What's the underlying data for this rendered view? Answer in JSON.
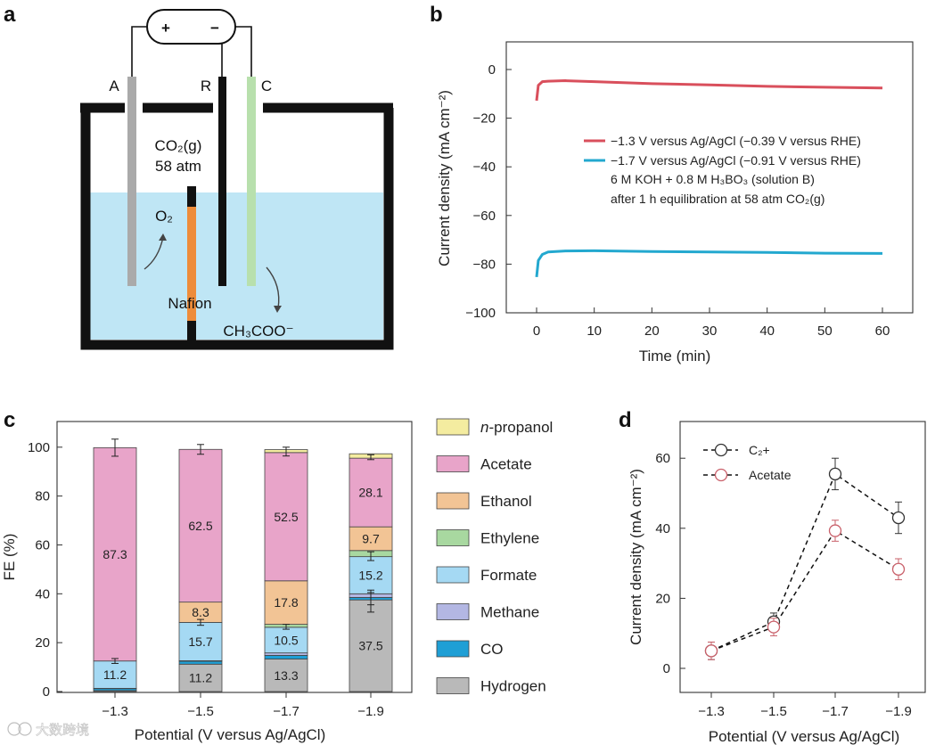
{
  "panel_labels": {
    "a": "a",
    "b": "b",
    "c": "c",
    "d": "d"
  },
  "diagram": {
    "plus": "+",
    "minus": "−",
    "electrode_a": "A",
    "electrode_r": "R",
    "electrode_c": "C",
    "gas_line1": "CO₂(g)",
    "gas_line2": "58 atm",
    "o2": "O₂",
    "membrane": "Nafion",
    "product": "CH₃COO⁻"
  },
  "watermark": "大数跨境",
  "chart_data": [
    {
      "panel": "b",
      "type": "line",
      "xlabel": "Time (min)",
      "ylabel": "Current density (mA cm⁻²)",
      "xlim": [
        0,
        60
      ],
      "ylim": [
        -100,
        0
      ],
      "xticks": [
        "0",
        "10",
        "20",
        "30",
        "40",
        "50",
        "60"
      ],
      "yticks": [
        "0",
        "−20",
        "−40",
        "−60",
        "−80",
        "−100"
      ],
      "grid": false,
      "legend_position": "right-middle",
      "colors": {
        "s1": "#d94f5c",
        "s2": "#23a8cf"
      },
      "series": [
        {
          "name": "−1.3 V versus Ag/AgCl (−0.39 V versus RHE)",
          "x": [
            0,
            0.3,
            1,
            2,
            5,
            10,
            20,
            30,
            40,
            50,
            60
          ],
          "y": [
            -12.8,
            -6.5,
            -5.0,
            -4.8,
            -4.6,
            -5.0,
            -5.8,
            -6.3,
            -6.9,
            -7.3,
            -7.6
          ]
        },
        {
          "name": "−1.7 V versus Ag/AgCl (−0.91 V versus RHE)",
          "x": [
            0,
            0.3,
            1,
            2,
            5,
            10,
            20,
            30,
            40,
            50,
            60
          ],
          "y": [
            -85.3,
            -78.5,
            -76.0,
            -75.0,
            -74.6,
            -74.5,
            -74.8,
            -75.0,
            -75.2,
            -75.5,
            -75.6
          ]
        }
      ],
      "annotation_lines": [
        "6 M KOH + 0.8 M H₃BO₃ (solution B)",
        "after 1 h equilibration at 58 atm CO₂(g)"
      ]
    },
    {
      "panel": "c",
      "type": "bar",
      "stacked": true,
      "xlabel": "Potential (V versus Ag/AgCl)",
      "ylabel": "FE (%)",
      "ylim": [
        0,
        110
      ],
      "yticks": [
        "0",
        "20",
        "40",
        "60",
        "80",
        "100"
      ],
      "categories": [
        "−1.3",
        "−1.5",
        "−1.7",
        "−1.9"
      ],
      "legend_position": "right",
      "series": [
        {
          "name": "Hydrogen",
          "color": "#b9b9b9",
          "values": [
            0.4,
            11.2,
            13.3,
            37.5
          ],
          "labels": [
            "",
            "11.2",
            "13.3",
            "37.5"
          ]
        },
        {
          "name": "CO",
          "color": "#1f9fd5",
          "values": [
            0.8,
            1.2,
            1.5,
            1.0
          ],
          "labels": [
            "",
            "",
            "",
            ""
          ]
        },
        {
          "name": "Methane",
          "color": "#b3b7e3",
          "values": [
            0.1,
            0.2,
            1.0,
            1.5
          ],
          "labels": [
            "",
            "",
            "",
            ""
          ]
        },
        {
          "name": "Formate",
          "color": "#a5d9f3",
          "values": [
            11.2,
            15.7,
            10.5,
            15.2
          ],
          "labels": [
            "11.2",
            "15.7",
            "10.5",
            "15.2"
          ]
        },
        {
          "name": "Ethylene",
          "color": "#a8d8a0",
          "values": [
            0.0,
            0.0,
            1.2,
            2.5
          ],
          "labels": [
            "",
            "",
            "",
            ""
          ]
        },
        {
          "name": "Ethanol",
          "color": "#f2c495",
          "values": [
            0.0,
            8.3,
            17.8,
            9.7
          ],
          "labels": [
            "",
            "8.3",
            "17.8",
            "9.7"
          ]
        },
        {
          "name": "Acetate",
          "color": "#e8a4c9",
          "values": [
            87.3,
            62.5,
            52.5,
            28.1
          ],
          "labels": [
            "87.3",
            "62.5",
            "52.5",
            "28.1"
          ]
        },
        {
          "name": "n-propanol",
          "color": "#f4eca0",
          "values": [
            0.0,
            0.0,
            1.2,
            1.8
          ],
          "labels": [
            "",
            "",
            "",
            ""
          ]
        }
      ],
      "error_bars": [
        {
          "category": "−1.3",
          "y": 99.8,
          "err": 3.5
        },
        {
          "category": "−1.3",
          "y": 12.5,
          "err": 1.0
        },
        {
          "category": "−1.5",
          "y": 99.1,
          "err": 2.0
        },
        {
          "category": "−1.5",
          "y": 28.3,
          "err": 1.2
        },
        {
          "category": "−1.7",
          "y": 98.2,
          "err": 1.8
        },
        {
          "category": "−1.7",
          "y": 26.5,
          "err": 1.0
        },
        {
          "category": "−1.9",
          "y": 95.9,
          "err": 1.0
        },
        {
          "category": "−1.9",
          "y": 55.4,
          "err": 1.8
        },
        {
          "category": "−1.9",
          "y": 38.5,
          "err": 3.0
        },
        {
          "category": "−1.9",
          "y": 36.5,
          "err": 4.0
        }
      ]
    },
    {
      "panel": "d",
      "type": "scatter",
      "xlabel": "Potential (V versus Ag/AgCl)",
      "ylabel": "Current density (mA cm⁻²)",
      "ylim": [
        -5,
        68
      ],
      "yticks": [
        "0",
        "20",
        "40",
        "60"
      ],
      "categories": [
        "−1.3",
        "−1.5",
        "−1.7",
        "−1.9"
      ],
      "grid": false,
      "legend_position": "top-left",
      "series": [
        {
          "name": "C₂+",
          "color": "#333333",
          "values": [
            5.0,
            13.3,
            55.5,
            43.0
          ],
          "errors": [
            2.5,
            2.5,
            4.5,
            4.5
          ]
        },
        {
          "name": "Acetate",
          "color": "#c9606a",
          "values": [
            5.0,
            11.8,
            39.3,
            28.3
          ],
          "errors": [
            2.5,
            2.5,
            3.0,
            3.0
          ]
        }
      ]
    }
  ]
}
